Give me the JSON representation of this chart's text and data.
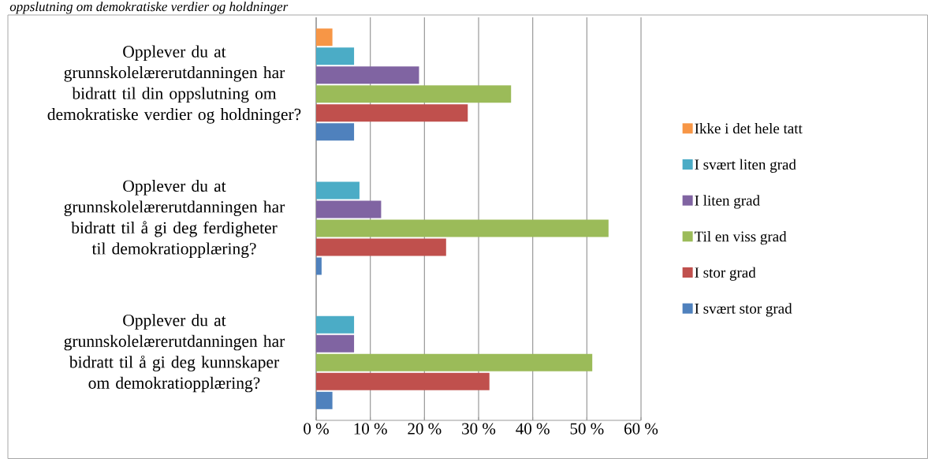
{
  "chart_data": {
    "type": "bar",
    "orientation": "horizontal",
    "title": "oppslutning om demokratiske verdier og holdninger",
    "categories": [
      "Opplever du at grunnskolelærerutdanningen har bidratt til din oppslutning om demokratiske verdier og holdninger?",
      "Opplever du at grunnskolelærerutdanningen har bidratt til å gi deg ferdigheter til demokratiopplæring?",
      "Opplever du at grunnskolelærerutdanningen har bidratt til å gi deg kunnskaper om demokratiopplæring?"
    ],
    "series": [
      {
        "name": "Ikke i det hele tatt",
        "color": "#f79646",
        "values": [
          3,
          0,
          0
        ]
      },
      {
        "name": "I svært liten grad",
        "color": "#4bacc6",
        "values": [
          7,
          8,
          7
        ]
      },
      {
        "name": "I liten grad",
        "color": "#8064a2",
        "values": [
          19,
          12,
          7
        ]
      },
      {
        "name": "Til en viss grad",
        "color": "#9bbb59",
        "values": [
          36,
          54,
          51
        ]
      },
      {
        "name": "I stor grad",
        "color": "#c0504d",
        "values": [
          28,
          24,
          32
        ]
      },
      {
        "name": "I svært stor grad",
        "color": "#4f81bd",
        "values": [
          7,
          1,
          3
        ]
      }
    ],
    "xlim": [
      0,
      60
    ],
    "xticks": [
      {
        "value": 0,
        "label": "0 %"
      },
      {
        "value": 10,
        "label": "10 %"
      },
      {
        "value": 20,
        "label": "20 %"
      },
      {
        "value": 30,
        "label": "30 %"
      },
      {
        "value": 40,
        "label": "40 %"
      },
      {
        "value": 50,
        "label": "50 %"
      },
      {
        "value": 60,
        "label": "60 %"
      }
    ],
    "grid": "x",
    "legend": "right"
  }
}
